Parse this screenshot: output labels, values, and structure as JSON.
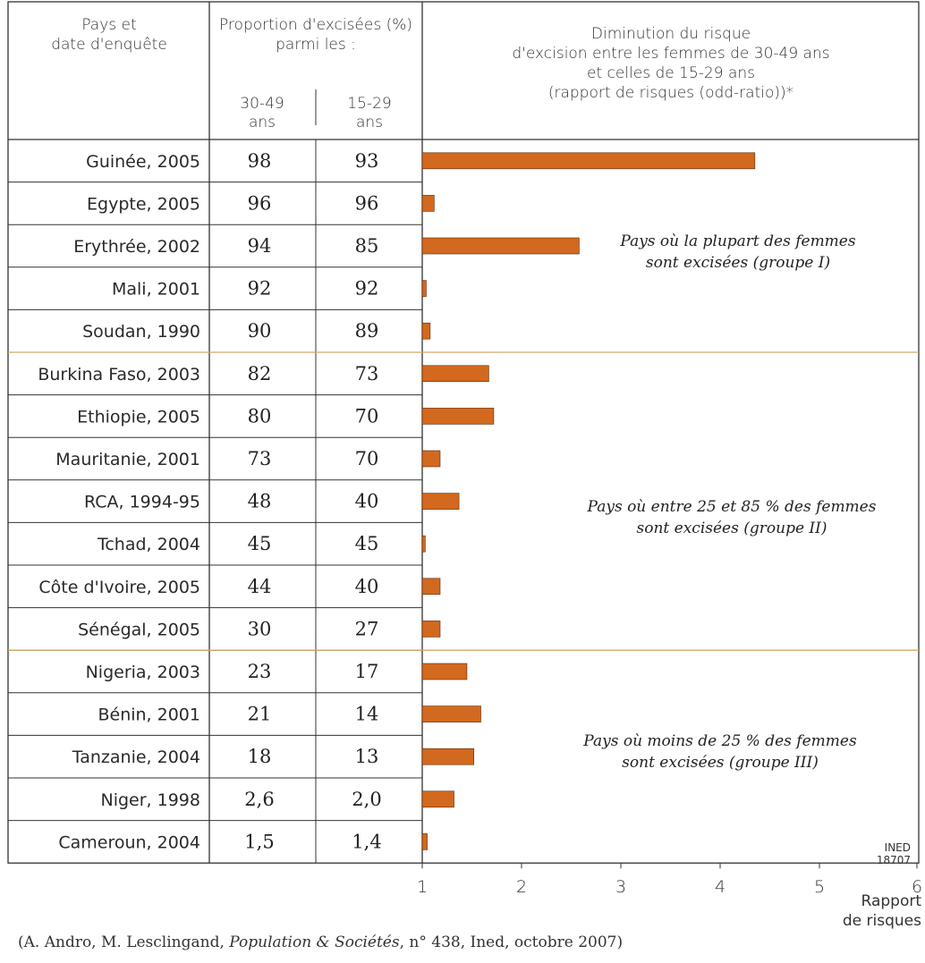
{
  "header": {
    "country_col": [
      "Pays et",
      "date d'enquête"
    ],
    "proportion_col": [
      "Proportion d'excisées (%)",
      "parmi les :"
    ],
    "age_old": [
      "30-49",
      "ans"
    ],
    "age_young": [
      "15-29",
      "ans"
    ],
    "risk_col": [
      "Diminution du risque",
      "d'excision entre les femmes de 30-49 ans",
      "et celles de 15-29 ans",
      "(rapport de risques (odd-ratio))*"
    ]
  },
  "chart_data": {
    "type": "bar",
    "orientation": "horizontal",
    "categories": [
      "Guinée, 2005",
      "Egypte, 2005",
      "Erythrée, 2002",
      "Mali, 2001",
      "Soudan, 1990",
      "Burkina Faso, 2003",
      "Ethiopie, 2005",
      "Mauritanie, 2001",
      "RCA, 1994-95",
      "Tchad, 2004",
      "Côte d'Ivoire, 2005",
      "Sénégal, 2005",
      "Nigeria, 2003",
      "Bénin, 2001",
      "Tanzanie, 2004",
      "Niger, 1998",
      "Cameroun, 2004"
    ],
    "table_30_49": [
      "98",
      "96",
      "94",
      "92",
      "90",
      "82",
      "80",
      "73",
      "48",
      "45",
      "44",
      "30",
      "23",
      "21",
      "18",
      "2,6",
      "1,5"
    ],
    "table_15_29": [
      "93",
      "96",
      "85",
      "92",
      "89",
      "73",
      "70",
      "70",
      "40",
      "45",
      "40",
      "27",
      "17",
      "14",
      "13",
      "2,0",
      "1,4"
    ],
    "values": [
      4.35,
      1.12,
      2.58,
      1.04,
      1.08,
      1.67,
      1.72,
      1.18,
      1.37,
      1.03,
      1.18,
      1.18,
      1.45,
      1.59,
      1.52,
      1.32,
      1.05
    ],
    "xlim": [
      1,
      6
    ],
    "xticks": [
      "1",
      "2",
      "3",
      "4",
      "5",
      "6"
    ],
    "xlabel": [
      "Rapport",
      "de risques"
    ],
    "bar_color": "#d2691e",
    "groups": [
      {
        "label": [
          "Pays où la plupart des femmes",
          "sont excisées (groupe I)"
        ]
      },
      {
        "label": [
          "Pays où entre 25 et 85 % des femmes",
          "sont excisées (groupe II)"
        ]
      },
      {
        "label": [
          "Pays où moins de 25 % des femmes",
          "sont excisées (groupe III)"
        ]
      }
    ]
  },
  "ined_label": [
    "INED",
    "18707"
  ],
  "source": {
    "prefix": "(A. Andro, M. Lesclingand, ",
    "journal": "Population & Sociétés",
    "suffix": ", n° 438, Ined, octobre 2007)"
  },
  "colors": {
    "separator": "#d4a76a",
    "border": "#333333"
  }
}
